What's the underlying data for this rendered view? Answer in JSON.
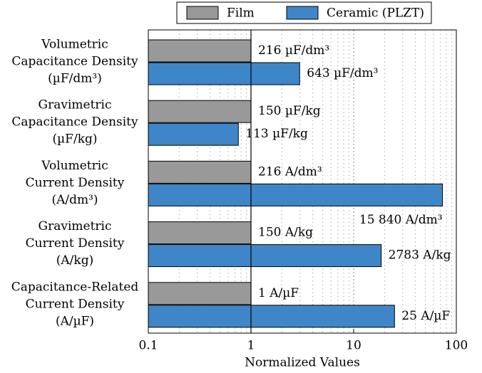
{
  "chart_data": {
    "type": "bar",
    "orientation": "horizontal",
    "log_scale": true,
    "grid": true,
    "xlabel": "Normalized Values",
    "xlim": [
      0.1,
      100
    ],
    "xticks": [
      0.1,
      1,
      10,
      100
    ],
    "legend_position": "top",
    "categories": [
      [
        "Volumetric",
        "Capacitance Density",
        "(µF/dm³)"
      ],
      [
        "Gravimetric",
        "Capacitance Density",
        "(µF/kg)"
      ],
      [
        "Volumetric",
        "Current Density",
        "(A/dm³)"
      ],
      [
        "Gravimetric",
        "Current Density",
        "(A/kg)"
      ],
      [
        "Capacitance-Related",
        "Current Density",
        "(A/µF)"
      ]
    ],
    "series": [
      {
        "name": "Film",
        "color": "#999999",
        "values": [
          1,
          1,
          1,
          1,
          1
        ],
        "annotations": [
          "216 µF/dm³",
          "150 µF/kg",
          "216 A/dm³",
          "150 A/kg",
          "1 A/µF"
        ]
      },
      {
        "name": "Ceramic (PLZT)",
        "color": "#3f86c8",
        "values": [
          2.977,
          0.753,
          73.33,
          18.55,
          25
        ],
        "annotations": [
          "643 µF/dm³",
          "113 µF/kg",
          "15 840 A/dm³",
          "2783 A/kg",
          "25 A/µF"
        ]
      }
    ]
  }
}
